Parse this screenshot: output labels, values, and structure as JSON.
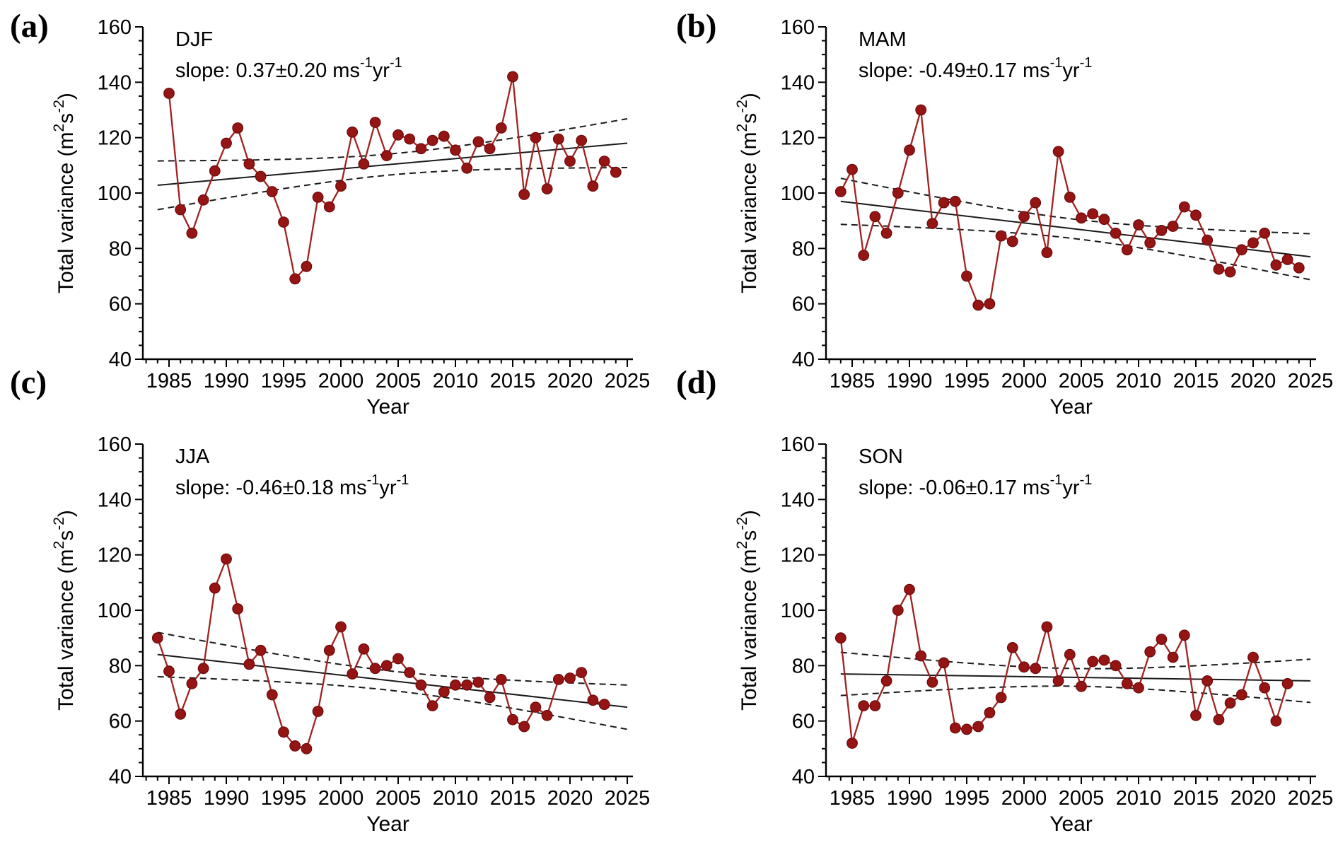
{
  "figure": {
    "background": "#ffffff",
    "marker_color": "#951414",
    "marker_edge_color": "#6d0a0a",
    "series_line_color": "#a32020",
    "trend_line_color": "#1a1a1a",
    "ci_line_color": "#1a1a1a",
    "axis_color": "#000000",
    "ylabel_text": "Total variance (m²s⁻²)",
    "ylabel_segments": [
      {
        "t": "Total variance (m"
      },
      {
        "sup": "2"
      },
      {
        "t": "s"
      },
      {
        "sup": "-2"
      },
      {
        "t": ")"
      }
    ],
    "xlabel": "Year"
  },
  "chart_data": [
    {
      "type": "line",
      "panel": "(a)",
      "title": "DJF",
      "slope_annotation": "slope: 0.37±0.20 ms⁻¹yr⁻¹",
      "slope_segments": [
        {
          "t": "slope: 0.37±0.20 ms"
        },
        {
          "sup": "-1"
        },
        {
          "t": "yr"
        },
        {
          "sup": "-1"
        }
      ],
      "xlabel": "Year",
      "ylabel": "Total variance (m²s⁻²)",
      "x_axis": {
        "min": 1983,
        "max": 2026,
        "major_ticks": [
          1985,
          1990,
          1995,
          2000,
          2005,
          2010,
          2015,
          2020,
          2025
        ],
        "minor_step": 1
      },
      "y_axis": {
        "min": 40,
        "max": 160,
        "major_ticks": [
          40,
          60,
          80,
          100,
          120,
          140,
          160
        ],
        "minor_step": 5
      },
      "grid": false,
      "legend": null,
      "start_year": 1985,
      "years": [
        1985,
        1986,
        1987,
        1988,
        1989,
        1990,
        1991,
        1992,
        1993,
        1994,
        1995,
        1996,
        1997,
        1998,
        1999,
        2000,
        2001,
        2002,
        2003,
        2004,
        2005,
        2006,
        2007,
        2008,
        2009,
        2010,
        2011,
        2012,
        2013,
        2014,
        2015,
        2016,
        2017,
        2018,
        2019,
        2020,
        2021,
        2022,
        2023,
        2024
      ],
      "values": [
        136,
        94,
        85.5,
        97.5,
        108,
        118,
        123.5,
        110.5,
        106,
        100.5,
        89.5,
        69,
        73.5,
        98.5,
        95,
        102.5,
        122,
        110.5,
        125.5,
        113.5,
        121,
        119.5,
        116,
        119,
        120.5,
        115.5,
        109,
        118.5,
        116,
        123.5,
        142,
        99.5,
        120,
        101.5,
        119.5,
        111.5,
        119,
        102.5,
        111.5,
        107.5
      ],
      "trend": {
        "v1984": 102.8,
        "v2025": 118.0,
        "slope_per_year": 0.37,
        "ci_half_width_mid": 3.8,
        "ci_half_width_end": 8.8
      }
    },
    {
      "type": "line",
      "panel": "(b)",
      "title": "MAM",
      "slope_annotation": "slope: -0.49±0.17 ms⁻¹yr⁻¹",
      "slope_segments": [
        {
          "t": "slope: -0.49±0.17 ms"
        },
        {
          "sup": "-1"
        },
        {
          "t": "yr"
        },
        {
          "sup": "-1"
        }
      ],
      "xlabel": "Year",
      "ylabel": "Total variance (m²s⁻²)",
      "x_axis": {
        "min": 1983,
        "max": 2026,
        "major_ticks": [
          1985,
          1990,
          1995,
          2000,
          2005,
          2010,
          2015,
          2020,
          2025
        ],
        "minor_step": 1
      },
      "y_axis": {
        "min": 40,
        "max": 160,
        "major_ticks": [
          40,
          60,
          80,
          100,
          120,
          140,
          160
        ],
        "minor_step": 5
      },
      "grid": false,
      "legend": null,
      "start_year": 1984,
      "years": [
        1984,
        1985,
        1986,
        1987,
        1988,
        1989,
        1990,
        1991,
        1992,
        1993,
        1994,
        1995,
        1996,
        1997,
        1998,
        1999,
        2000,
        2001,
        2002,
        2003,
        2004,
        2005,
        2006,
        2007,
        2008,
        2009,
        2010,
        2011,
        2012,
        2013,
        2014,
        2015,
        2016,
        2017,
        2018,
        2019,
        2020,
        2021,
        2022,
        2023,
        2024
      ],
      "values": [
        100.5,
        108.5,
        77.5,
        91.5,
        85.5,
        100,
        115.5,
        130,
        89,
        96.5,
        97,
        70,
        59.5,
        60,
        84.5,
        82.5,
        91.5,
        96.5,
        78.5,
        115,
        98.5,
        91,
        92.5,
        90.5,
        85.5,
        79.5,
        88.5,
        82,
        86.5,
        88,
        95,
        92,
        83,
        72.5,
        71.5,
        79.5,
        82,
        85.5,
        74,
        76,
        73
      ],
      "trend": {
        "v1984": 97.0,
        "v2025": 77.0,
        "slope_per_year": -0.49,
        "ci_half_width_mid": 3.5,
        "ci_half_width_end": 8.3
      }
    },
    {
      "type": "line",
      "panel": "(c)",
      "title": "JJA",
      "slope_annotation": "slope: -0.46±0.18 ms⁻¹yr⁻¹",
      "slope_segments": [
        {
          "t": "slope: -0.46±0.18 ms"
        },
        {
          "sup": "-1"
        },
        {
          "t": "yr"
        },
        {
          "sup": "-1"
        }
      ],
      "xlabel": "Year",
      "ylabel": "Total variance (m²s⁻²)",
      "x_axis": {
        "min": 1983,
        "max": 2026,
        "major_ticks": [
          1985,
          1990,
          1995,
          2000,
          2005,
          2010,
          2015,
          2020,
          2025
        ],
        "minor_step": 1
      },
      "y_axis": {
        "min": 40,
        "max": 160,
        "major_ticks": [
          40,
          60,
          80,
          100,
          120,
          140,
          160
        ],
        "minor_step": 5
      },
      "grid": false,
      "legend": null,
      "start_year": 1984,
      "years": [
        1984,
        1985,
        1986,
        1987,
        1988,
        1989,
        1990,
        1991,
        1992,
        1993,
        1994,
        1995,
        1996,
        1997,
        1998,
        1999,
        2000,
        2001,
        2002,
        2003,
        2004,
        2005,
        2006,
        2007,
        2008,
        2009,
        2010,
        2011,
        2012,
        2013,
        2014,
        2015,
        2016,
        2017,
        2018,
        2019,
        2020,
        2021,
        2022,
        2023
      ],
      "values": [
        90,
        78,
        62.5,
        73.5,
        79,
        108,
        118.5,
        100.5,
        80.5,
        85.5,
        69.5,
        56,
        51,
        50,
        63.5,
        85.5,
        94,
        77,
        86,
        79,
        80,
        82.5,
        77.5,
        73,
        65.5,
        70.5,
        73,
        73,
        74,
        68.5,
        75,
        60.5,
        58,
        65,
        62,
        75,
        75.5,
        77.5,
        67.5,
        66
      ],
      "trend": {
        "v1984": 84.0,
        "v2025": 65.0,
        "slope_per_year": -0.46,
        "ci_half_width_mid": 3.5,
        "ci_half_width_end": 8.0
      }
    },
    {
      "type": "line",
      "panel": "(d)",
      "title": "SON",
      "slope_annotation": "slope: -0.06±0.17 ms⁻¹yr⁻¹",
      "slope_segments": [
        {
          "t": "slope: -0.06±0.17 ms"
        },
        {
          "sup": "-1"
        },
        {
          "t": "yr"
        },
        {
          "sup": "-1"
        }
      ],
      "xlabel": "Year",
      "ylabel": "Total variance (m²s⁻²)",
      "x_axis": {
        "min": 1983,
        "max": 2026,
        "major_ticks": [
          1985,
          1990,
          1995,
          2000,
          2005,
          2010,
          2015,
          2020,
          2025
        ],
        "minor_step": 1
      },
      "y_axis": {
        "min": 40,
        "max": 160,
        "major_ticks": [
          40,
          60,
          80,
          100,
          120,
          140,
          160
        ],
        "minor_step": 5
      },
      "grid": false,
      "legend": null,
      "start_year": 1984,
      "years": [
        1984,
        1985,
        1986,
        1987,
        1988,
        1989,
        1990,
        1991,
        1992,
        1993,
        1994,
        1995,
        1996,
        1997,
        1998,
        1999,
        2000,
        2001,
        2002,
        2003,
        2004,
        2005,
        2006,
        2007,
        2008,
        2009,
        2010,
        2011,
        2012,
        2013,
        2014,
        2015,
        2016,
        2017,
        2018,
        2019,
        2020,
        2021,
        2022,
        2023
      ],
      "values": [
        90,
        52,
        65.5,
        65.5,
        74.5,
        100,
        107.5,
        83.5,
        74,
        81,
        57.5,
        57,
        58,
        63,
        68.5,
        86.5,
        79.5,
        79,
        94,
        74.5,
        84,
        72.5,
        81.5,
        82,
        80,
        73.5,
        72,
        85,
        89.5,
        83,
        91,
        62,
        74.5,
        60.5,
        66.5,
        69.5,
        83,
        72,
        60,
        73.5
      ],
      "trend": {
        "v1984": 77.0,
        "v2025": 74.5,
        "slope_per_year": -0.06,
        "ci_half_width_mid": 3.2,
        "ci_half_width_end": 7.8
      }
    }
  ]
}
